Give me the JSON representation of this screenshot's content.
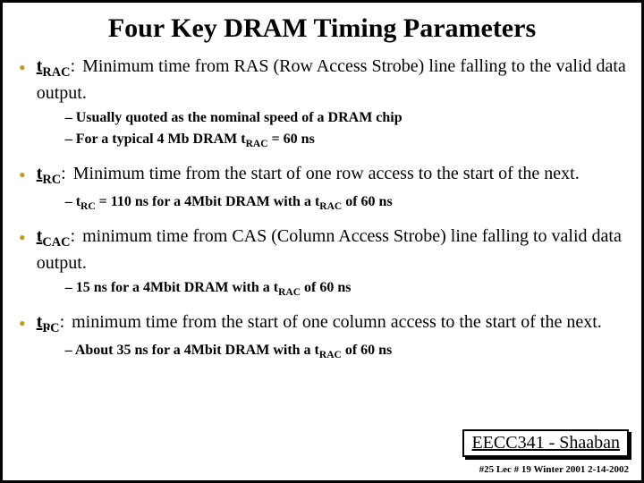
{
  "title": "Four Key DRAM Timing Parameters",
  "params": [
    {
      "label_html": "t<sub>RAC</sub>",
      "def": "Minimum time from RAS (Row Access Strobe) line falling to the valid data output.",
      "subs": [
        "Usually quoted as the nominal speed of a DRAM chip",
        "For a typical 4 Mb DRAM t<sub>RAC</sub>  = 60 ns"
      ]
    },
    {
      "label_html": "t<sub>RC</sub>",
      "def": "Minimum time from the start of one row access to the start of the next.",
      "subs": [
        "t<sub>RC</sub>  = 110 ns for a 4Mbit DRAM with a t<sub>RAC</sub> of 60 ns"
      ]
    },
    {
      "label_html": "t<sub>CAC</sub>",
      "def": "minimum time from CAS (Column Access Strobe) line falling to valid data output.",
      "subs": [
        "15 ns for a 4Mbit DRAM with a t<sub>RAC</sub> of 60 ns"
      ]
    },
    {
      "label_html": "t<sub>PC</sub>",
      "def": "minimum time from the start of one column access to the start of the next.",
      "subs": [
        "About 35 ns for a 4Mbit DRAM with a t<sub>RAC</sub> of 60 ns"
      ]
    }
  ],
  "footer_box": "EECC341 - Shaaban",
  "footer_line": "#25  Lec # 19   Winter 2001   2-14-2002"
}
